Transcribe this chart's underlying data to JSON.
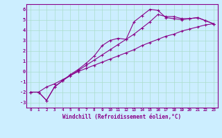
{
  "xlabel": "Windchill (Refroidissement éolien,°C)",
  "bg_color": "#cceeff",
  "grid_color": "#aaddcc",
  "line_color": "#880088",
  "x_ticks": [
    0,
    1,
    2,
    3,
    4,
    5,
    6,
    7,
    8,
    9,
    10,
    11,
    12,
    13,
    14,
    15,
    16,
    17,
    18,
    19,
    20,
    21,
    22,
    23
  ],
  "y_ticks": [
    -3,
    -2,
    -1,
    0,
    1,
    2,
    3,
    4,
    5,
    6
  ],
  "xlim": [
    -0.5,
    23.5
  ],
  "ylim": [
    -3.5,
    6.5
  ],
  "line1_x": [
    0,
    1,
    2,
    3,
    4,
    5,
    6,
    7,
    8,
    9,
    10,
    11,
    12,
    13,
    14,
    15,
    16,
    17,
    18,
    19,
    20,
    21,
    22,
    23
  ],
  "line1_y": [
    -2.0,
    -2.0,
    -1.5,
    -1.2,
    -0.8,
    -0.4,
    0.0,
    0.3,
    0.6,
    0.9,
    1.2,
    1.5,
    1.8,
    2.1,
    2.5,
    2.8,
    3.1,
    3.4,
    3.6,
    3.9,
    4.1,
    4.3,
    4.5,
    4.6
  ],
  "line2_x": [
    0,
    1,
    2,
    3,
    4,
    5,
    6,
    7,
    8,
    9,
    10,
    11,
    12,
    13,
    14,
    15,
    16,
    17,
    18,
    19,
    20,
    21,
    22,
    23
  ],
  "line2_y": [
    -2.0,
    -2.0,
    -2.8,
    -1.5,
    -0.9,
    -0.4,
    0.1,
    0.6,
    1.1,
    1.6,
    2.1,
    2.6,
    3.1,
    3.6,
    4.2,
    4.8,
    5.5,
    5.3,
    5.3,
    5.1,
    5.1,
    5.2,
    4.9,
    4.6
  ],
  "line3_x": [
    0,
    1,
    2,
    3,
    4,
    5,
    6,
    7,
    8,
    9,
    10,
    11,
    12,
    13,
    14,
    15,
    16,
    17,
    18,
    19,
    20,
    21,
    22,
    23
  ],
  "line3_y": [
    -2.0,
    -2.0,
    -2.8,
    -1.5,
    -0.9,
    -0.3,
    0.2,
    0.8,
    1.5,
    2.5,
    3.0,
    3.2,
    3.1,
    4.8,
    5.4,
    6.0,
    5.9,
    5.2,
    5.1,
    5.0,
    5.1,
    5.2,
    4.9,
    4.6
  ]
}
